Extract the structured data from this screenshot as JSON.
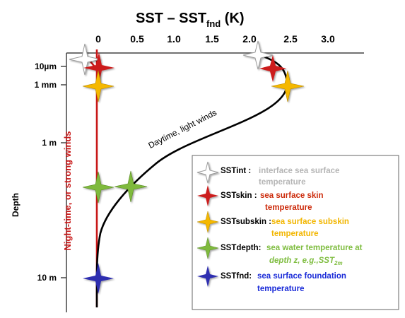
{
  "title": {
    "main": "SST – SST",
    "subscript": "fnd",
    "unit": " (K)"
  },
  "x_ticks": [
    "0",
    "0.5",
    "1.0",
    "1.5",
    "2.0",
    "2.5",
    "3.0"
  ],
  "y_ticks": [
    "10µm",
    "1 mm",
    "1 m",
    "10 m"
  ],
  "y_axis_label": "Depth",
  "annotations": {
    "night": "Night-time, or strong winds",
    "day": "Daytime, light winds"
  },
  "legend": {
    "items": [
      {
        "term": "SSTint :",
        "desc1": "interface sea surface",
        "desc2": "temperature",
        "color": "#ffffff",
        "text_color": "#b5b5b5"
      },
      {
        "term": "SSTskin :",
        "desc1": "sea surface skin",
        "desc2": "temperature",
        "color": "#cc1a1a",
        "text_color": "#cc2a0a"
      },
      {
        "term": "SSTsubskin :",
        "desc1": "sea surface subskin",
        "desc2": "temperature",
        "color": "#f5b800",
        "text_color": "#f2b600"
      },
      {
        "term": "SSTdepth:",
        "desc1": "sea water temperature at",
        "desc2": "depth z, e.g.,SST",
        "desc2_sub": "2m",
        "color": "#7fba3c",
        "text_color": "#7fbd40"
      },
      {
        "term": "SSTfnd:",
        "desc1": "sea surface foundation",
        "desc2": "temperature",
        "color": "#2d2fb0",
        "text_color": "#1a2bd8"
      }
    ]
  },
  "colors": {
    "night_line": "#c81818",
    "day_curve": "#000000",
    "axis": "#444444"
  }
}
